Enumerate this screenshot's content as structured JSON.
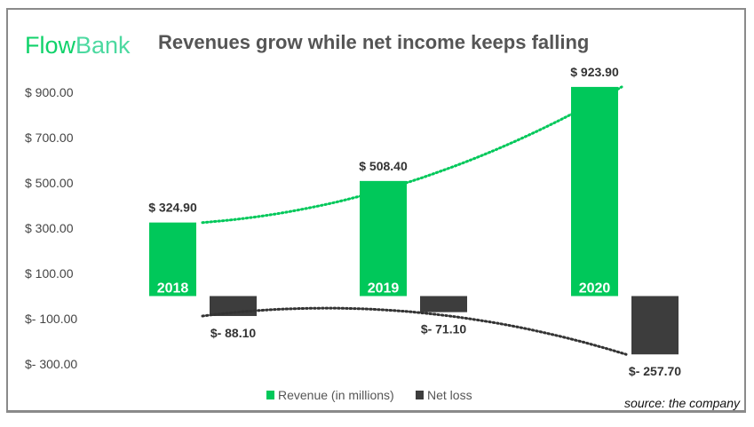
{
  "logo": {
    "part1": "Flow",
    "part2": "Bank"
  },
  "source": "source: the company",
  "colors": {
    "revenue": "#00c85a",
    "net_loss": "#3d3d3d",
    "revenue_trend": "#00c85a",
    "net_loss_trend": "#333333"
  },
  "chart_data": {
    "type": "bar",
    "title": "Revenues grow while net income keeps falling",
    "categories": [
      "2018",
      "2019",
      "2020"
    ],
    "series": [
      {
        "name": "Revenue (in millions)",
        "values": [
          324.9,
          508.4,
          923.9
        ],
        "labels": [
          "$ 324.90",
          "$ 508.40",
          "$ 923.90"
        ],
        "trendline": "polynomial dotted"
      },
      {
        "name": "Net loss",
        "values": [
          -88.1,
          -71.1,
          -257.7
        ],
        "labels": [
          "$- 88.10",
          "$- 71.10",
          "$- 257.70"
        ],
        "trendline": "polynomial dotted"
      }
    ],
    "yticks": [
      900,
      700,
      500,
      300,
      100,
      -100,
      -300
    ],
    "ytick_labels": [
      "$ 900.00",
      "$ 700.00",
      "$ 500.00",
      "$ 300.00",
      "$ 100.00",
      "$- 100.00",
      "$- 300.00"
    ],
    "ylim": [
      -300,
      900
    ],
    "grid": false,
    "legend": "bottom"
  }
}
